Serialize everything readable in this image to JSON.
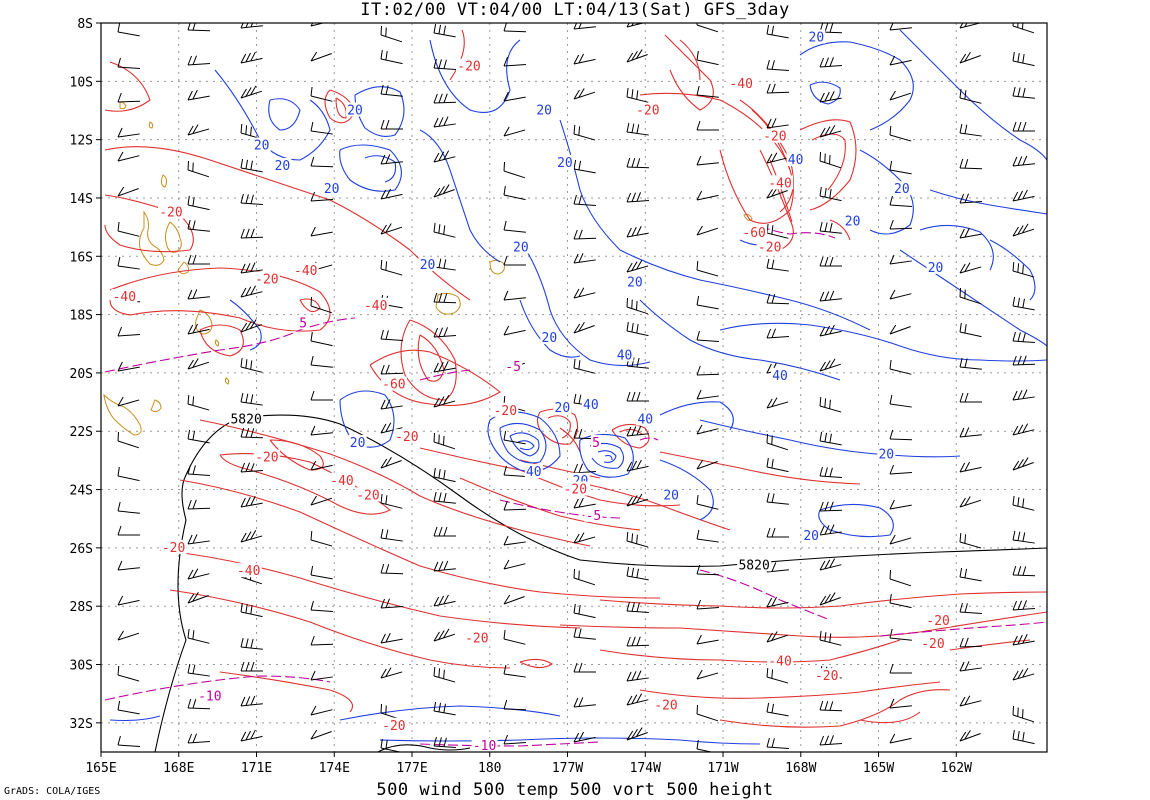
{
  "header": {
    "title": "IT:02/00 VT:04/00 LT:04/13(Sat) GFS_3day"
  },
  "footer": {
    "caption": "500 wind 500 temp 500 vort 500 height",
    "credit": "GrADS: COLA/IGES"
  },
  "colors": {
    "frame": "#000000",
    "grid": "#999999",
    "height": "#000000",
    "temp_neg": "#e03030",
    "temp_pos": "#2040e0",
    "vort": "#c000a0",
    "coast": "#c89020"
  },
  "axes": {
    "x_ticks": [
      "165E",
      "168E",
      "171E",
      "174E",
      "177E",
      "180",
      "177W",
      "174W",
      "171W",
      "168W",
      "165W",
      "162W"
    ],
    "y_ticks": [
      "8S",
      "10S",
      "12S",
      "14S",
      "16S",
      "18S",
      "20S",
      "22S",
      "24S",
      "26S",
      "28S",
      "30S",
      "32S"
    ]
  },
  "contour_labels": [
    {
      "text": "20",
      "color": "#2040e0",
      "lon": -167.4,
      "lat": -8.5
    },
    {
      "text": "-20",
      "color": "#e03030",
      "lon": 179.2,
      "lat": -9.5
    },
    {
      "text": "-40",
      "color": "#e03030",
      "lon": -170.3,
      "lat": -10.1
    },
    {
      "text": "-20",
      "color": "#e03030",
      "lon": -173.9,
      "lat": -11.0
    },
    {
      "text": "20",
      "color": "#2040e0",
      "lon": -177.9,
      "lat": -11.0
    },
    {
      "text": "20",
      "color": "#2040e0",
      "lon": 174.8,
      "lat": -11.0
    },
    {
      "text": "20",
      "color": "#2040e0",
      "lon": 171.2,
      "lat": -12.2
    },
    {
      "text": "-20",
      "color": "#e03030",
      "lon": -169.0,
      "lat": -11.9
    },
    {
      "text": "40",
      "color": "#2040e0",
      "lon": -168.2,
      "lat": -12.7
    },
    {
      "text": "20",
      "color": "#2040e0",
      "lon": 172.0,
      "lat": -12.9
    },
    {
      "text": "20",
      "color": "#2040e0",
      "lon": -177.1,
      "lat": -12.8
    },
    {
      "text": "-40",
      "color": "#e03030",
      "lon": -168.8,
      "lat": -13.5
    },
    {
      "text": "20",
      "color": "#2040e0",
      "lon": 173.9,
      "lat": -13.7
    },
    {
      "text": "20",
      "color": "#2040e0",
      "lon": -164.1,
      "lat": -13.7
    },
    {
      "text": "-20",
      "color": "#e03030",
      "lon": 167.7,
      "lat": -14.5
    },
    {
      "text": "20",
      "color": "#2040e0",
      "lon": -166.0,
      "lat": -14.8
    },
    {
      "text": "-60",
      "color": "#e03030",
      "lon": -169.8,
      "lat": -15.2
    },
    {
      "text": "-20",
      "color": "#e03030",
      "lon": -169.2,
      "lat": -15.7
    },
    {
      "text": "20",
      "color": "#2040e0",
      "lon": -178.8,
      "lat": -15.7
    },
    {
      "text": "20",
      "color": "#2040e0",
      "lon": 177.6,
      "lat": -16.3
    },
    {
      "text": "20",
      "color": "#2040e0",
      "lon": -162.8,
      "lat": -16.4
    },
    {
      "text": "-40",
      "color": "#e03030",
      "lon": 172.9,
      "lat": -16.5
    },
    {
      "text": "-20",
      "color": "#e03030",
      "lon": 171.4,
      "lat": -16.8
    },
    {
      "text": "20",
      "color": "#2040e0",
      "lon": -174.4,
      "lat": -16.9
    },
    {
      "text": "-40",
      "color": "#e03030",
      "lon": 165.9,
      "lat": -17.4
    },
    {
      "text": "-40",
      "color": "#e03030",
      "lon": 175.6,
      "lat": -17.7
    },
    {
      "text": "5",
      "color": "#c000a0",
      "lon": 172.8,
      "lat": -18.3
    },
    {
      "text": "20",
      "color": "#2040e0",
      "lon": -177.7,
      "lat": -18.8
    },
    {
      "text": "40",
      "color": "#2040e0",
      "lon": -174.8,
      "lat": -19.4
    },
    {
      "text": "-5",
      "color": "#c000a0",
      "lon": -179.1,
      "lat": -19.8
    },
    {
      "text": "40",
      "color": "#2040e0",
      "lon": -168.8,
      "lat": -20.1
    },
    {
      "text": "-60",
      "color": "#e03030",
      "lon": 176.3,
      "lat": -20.4
    },
    {
      "text": "-20",
      "color": "#e03030",
      "lon": -179.4,
      "lat": -21.3
    },
    {
      "text": "20",
      "color": "#2040e0",
      "lon": -177.2,
      "lat": -21.2
    },
    {
      "text": "40",
      "color": "#2040e0",
      "lon": -176.1,
      "lat": -21.1
    },
    {
      "text": "40",
      "color": "#2040e0",
      "lon": -174.0,
      "lat": -21.6
    },
    {
      "text": "5820",
      "color": "#000000",
      "lon": 170.6,
      "lat": -21.6
    },
    {
      "text": "5",
      "color": "#c000a0",
      "lon": -175.9,
      "lat": -22.4
    },
    {
      "text": "-20",
      "color": "#e03030",
      "lon": 176.8,
      "lat": -22.2
    },
    {
      "text": "20",
      "color": "#2040e0",
      "lon": 174.9,
      "lat": -22.4
    },
    {
      "text": "20",
      "color": "#2040e0",
      "lon": -164.7,
      "lat": -22.8
    },
    {
      "text": "-20",
      "color": "#e03030",
      "lon": 171.4,
      "lat": -22.9
    },
    {
      "text": "40",
      "color": "#2040e0",
      "lon": -178.3,
      "lat": -23.4
    },
    {
      "text": "20",
      "color": "#2040e0",
      "lon": -176.5,
      "lat": -23.7
    },
    {
      "text": "-40",
      "color": "#e03030",
      "lon": 174.3,
      "lat": -23.7
    },
    {
      "text": "-20",
      "color": "#e03030",
      "lon": -176.7,
      "lat": -24.0
    },
    {
      "text": "-20",
      "color": "#e03030",
      "lon": 175.3,
      "lat": -24.2
    },
    {
      "text": "20",
      "color": "#2040e0",
      "lon": -173.0,
      "lat": -24.2
    },
    {
      "text": "-5",
      "color": "#c000a0",
      "lon": -176.0,
      "lat": -24.9
    },
    {
      "text": "20",
      "color": "#2040e0",
      "lon": -167.6,
      "lat": -25.6
    },
    {
      "text": "-20",
      "color": "#e03030",
      "lon": 167.8,
      "lat": -26.0
    },
    {
      "text": "5820",
      "color": "#000000",
      "lon": -169.8,
      "lat": -26.6
    },
    {
      "text": "-40",
      "color": "#e03030",
      "lon": 170.7,
      "lat": -26.8
    },
    {
      "text": "-20",
      "color": "#e03030",
      "lon": -162.7,
      "lat": -28.5
    },
    {
      "text": "-20",
      "color": "#e03030",
      "lon": 179.5,
      "lat": -29.1
    },
    {
      "text": "-20",
      "color": "#e03030",
      "lon": -162.9,
      "lat": -29.3
    },
    {
      "text": "-40",
      "color": "#e03030",
      "lon": -168.8,
      "lat": -29.9
    },
    {
      "text": "-20",
      "color": "#e03030",
      "lon": -167.0,
      "lat": -30.4
    },
    {
      "text": "-10",
      "color": "#c000a0",
      "lon": 169.2,
      "lat": -31.1
    },
    {
      "text": "-20",
      "color": "#e03030",
      "lon": -173.2,
      "lat": -31.4
    },
    {
      "text": "-20",
      "color": "#e03030",
      "lon": 176.3,
      "lat": -32.1
    },
    {
      "text": "-10",
      "color": "#c000a0",
      "lon": 179.8,
      "lat": -32.8
    }
  ]
}
